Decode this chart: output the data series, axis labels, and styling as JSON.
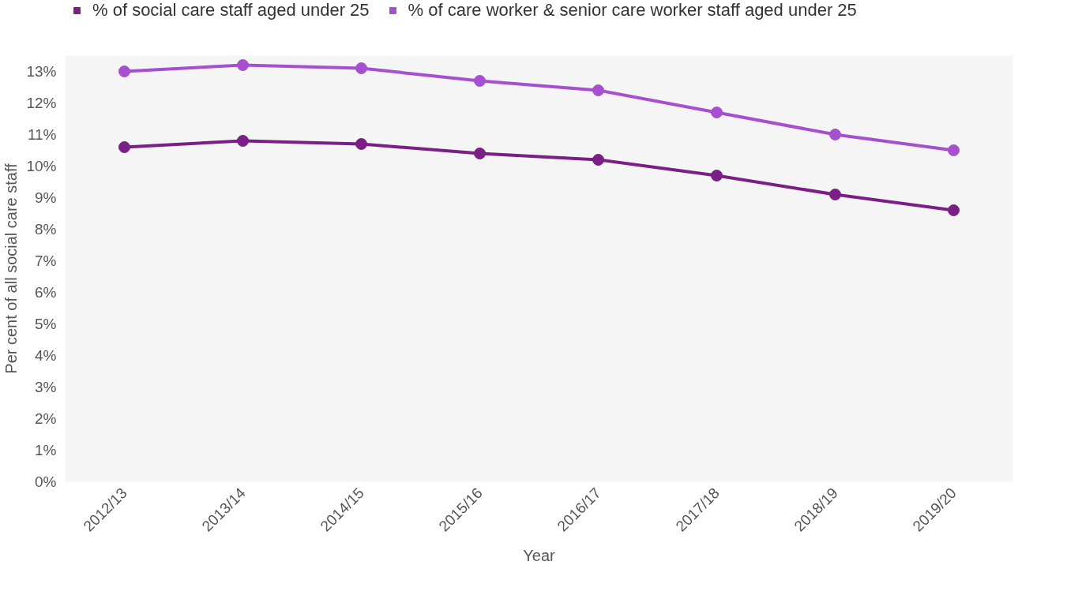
{
  "chart_data": {
    "type": "line",
    "xlabel": "Year",
    "ylabel": "Per cent of all social care staff",
    "categories": [
      "2012/13",
      "2013/14",
      "2014/15",
      "2015/16",
      "2016/17",
      "2017/18",
      "2018/19",
      "2019/20"
    ],
    "series": [
      {
        "name": "% of social care staff aged under 25",
        "color": "#7b1e86",
        "values": [
          10.6,
          10.8,
          10.7,
          10.4,
          10.2,
          9.7,
          9.1,
          8.6
        ]
      },
      {
        "name": "% of care worker & senior care worker staff aged under 25",
        "color": "#a64fd0",
        "values": [
          13.0,
          13.2,
          13.1,
          12.7,
          12.4,
          11.7,
          11.0,
          10.5
        ]
      }
    ],
    "ylim": [
      0,
      13.5
    ],
    "yticks": [
      {
        "value": 0,
        "label": "0%"
      },
      {
        "value": 1,
        "label": "1%"
      },
      {
        "value": 2,
        "label": "2%"
      },
      {
        "value": 3,
        "label": "3%"
      },
      {
        "value": 4,
        "label": "4%"
      },
      {
        "value": 5,
        "label": "5%"
      },
      {
        "value": 6,
        "label": "6%"
      },
      {
        "value": 7,
        "label": "7%"
      },
      {
        "value": 8,
        "label": "8%"
      },
      {
        "value": 9,
        "label": "9%"
      },
      {
        "value": 10,
        "label": "10%"
      },
      {
        "value": 11,
        "label": "11%"
      },
      {
        "value": 12,
        "label": "12%"
      },
      {
        "value": 13,
        "label": "13%"
      }
    ],
    "grid": false,
    "legend": "top left",
    "marker": "circle",
    "line_style": "solid"
  }
}
